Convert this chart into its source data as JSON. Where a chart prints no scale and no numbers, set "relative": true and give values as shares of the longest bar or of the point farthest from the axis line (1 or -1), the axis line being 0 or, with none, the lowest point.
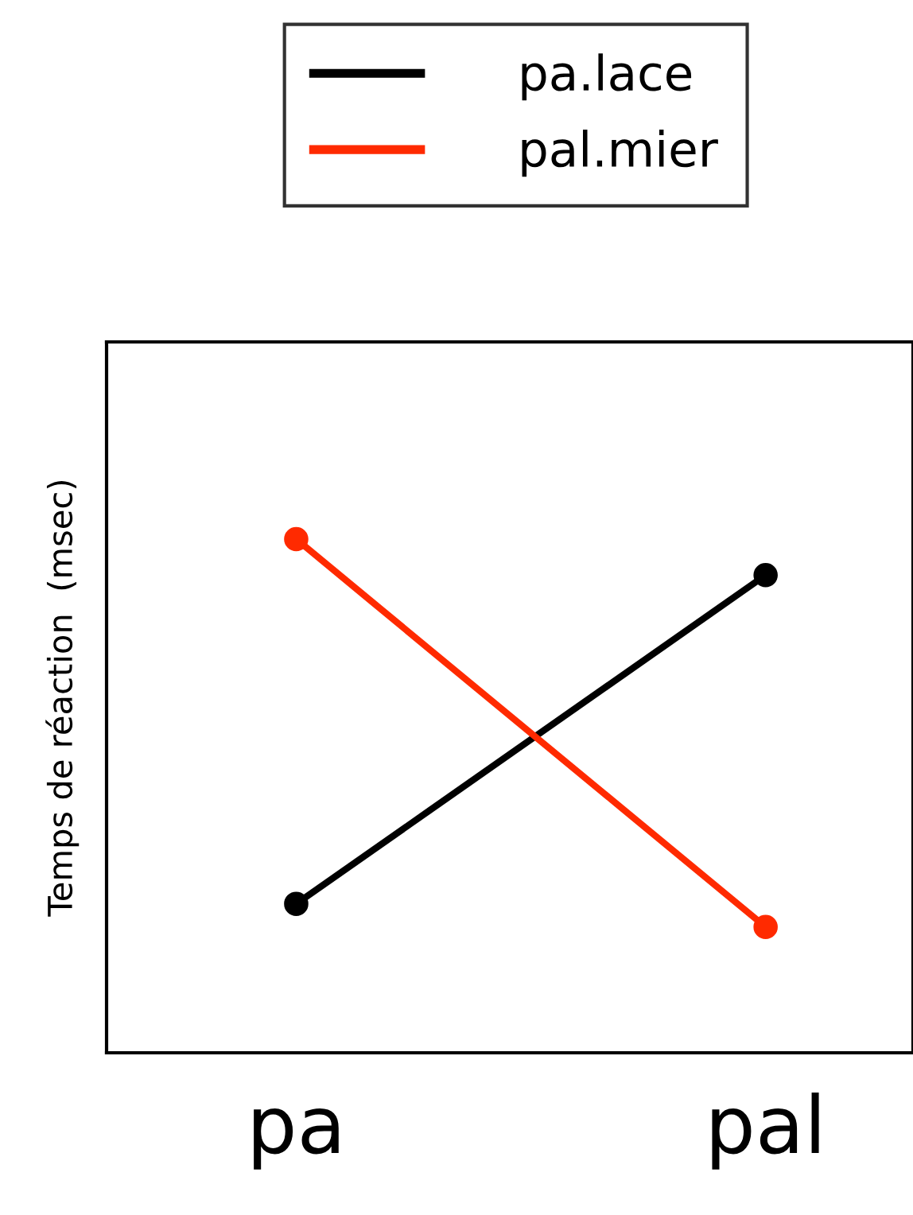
{
  "chart_data": {
    "type": "line",
    "ylabel": "Temps de réaction  (msec)",
    "categories": [
      "pa",
      "pal"
    ],
    "relative": true,
    "marker": "circle",
    "line_style": "solid",
    "legend": "top",
    "grid": false,
    "series": [
      {
        "name": "pa.lace",
        "color": "#000000",
        "values": [
          0.29,
          0.93
        ]
      },
      {
        "name": "pal.mier",
        "color": "#ff2a00",
        "values": [
          1.0,
          0.245
        ]
      }
    ]
  }
}
